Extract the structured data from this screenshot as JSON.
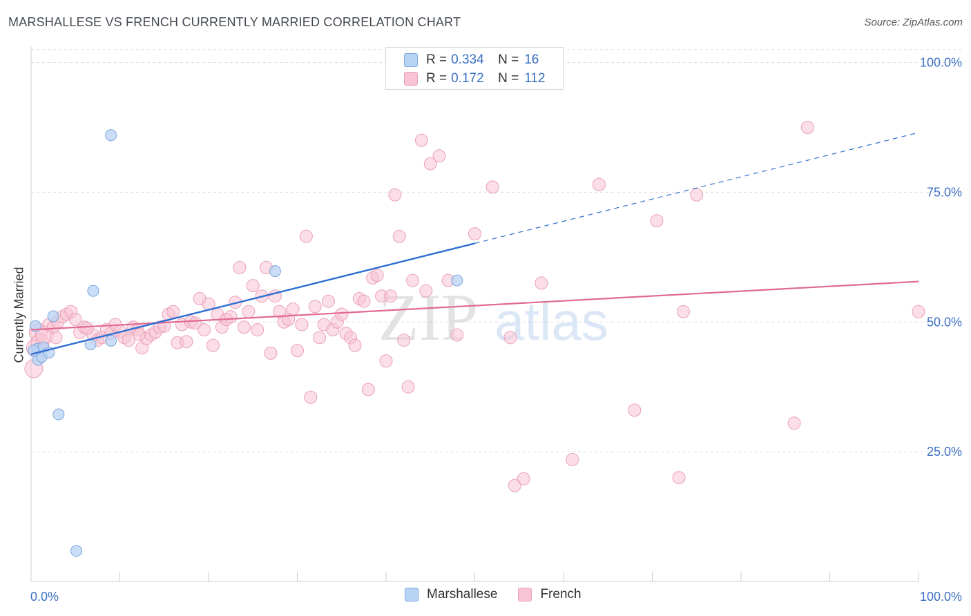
{
  "header": {
    "title": "MARSHALLESE VS FRENCH CURRENTLY MARRIED CORRELATION CHART",
    "source": "Source: ZipAtlas.com"
  },
  "watermark": {
    "zip": "ZIP",
    "atlas": "atlas"
  },
  "legend_top": {
    "rows": [
      {
        "series": "Marshallese",
        "r_label": "R =",
        "r_value": "0.334",
        "n_label": "N =",
        "n_value": "16"
      },
      {
        "series": "French",
        "r_label": "R =",
        "r_value": "0.172",
        "n_label": "N =",
        "n_value": "112"
      }
    ]
  },
  "legend_bottom": {
    "items": [
      {
        "label": "Marshallese"
      },
      {
        "label": "French"
      }
    ]
  },
  "colors": {
    "marshallese_fill": "#b9d3f4",
    "marshallese_stroke": "#7ea6dc",
    "marshallese_line": "#2f6fcf",
    "french_fill": "#f8c3d4",
    "french_stroke": "#eaa0b8",
    "french_line": "#e0698f",
    "axis_label": "#3b6fc4",
    "grid": "#dddddd"
  },
  "chart_data": {
    "type": "scatter",
    "title": "MARSHALLESE VS FRENCH CURRENTLY MARRIED CORRELATION CHART",
    "xlabel": "",
    "ylabel": "Currently Married",
    "xlim": [
      0,
      100
    ],
    "ylim": [
      0,
      103
    ],
    "x_tick_labels": [
      {
        "value": 0,
        "label": "0.0%"
      },
      {
        "value": 100,
        "label": "100.0%"
      }
    ],
    "y_tick_labels": [
      {
        "value": 25,
        "label": "25.0%"
      },
      {
        "value": 50,
        "label": "50.0%"
      },
      {
        "value": 75,
        "label": "75.0%"
      },
      {
        "value": 100,
        "label": "100.0%"
      }
    ],
    "series": [
      {
        "name": "Marshallese",
        "points": [
          [
            0.5,
            49.2
          ],
          [
            0.7,
            44.8
          ],
          [
            0.8,
            42.7
          ],
          [
            1.2,
            43.3
          ],
          [
            1.4,
            45.1
          ],
          [
            2.0,
            44.1
          ],
          [
            2.5,
            51.1
          ],
          [
            3.1,
            32.2
          ],
          [
            5.1,
            5.9
          ],
          [
            7.0,
            56.0
          ],
          [
            6.7,
            45.7
          ],
          [
            9.0,
            86.0
          ],
          [
            9.0,
            46.4
          ],
          [
            27.5,
            59.8
          ],
          [
            48.0,
            58.0
          ],
          [
            0.3,
            44.5
          ]
        ],
        "trend": {
          "x0": 0,
          "y0": 43.8,
          "x1": 100,
          "y1": 86.5,
          "solid_until": 50
        }
      },
      {
        "name": "French",
        "points": [
          [
            0.3,
            41.0
          ],
          [
            0.5,
            45.0
          ],
          [
            0.8,
            48.0
          ],
          [
            1.0,
            46.0
          ],
          [
            1.5,
            47.5
          ],
          [
            2.0,
            49.5
          ],
          [
            2.5,
            49.0
          ],
          [
            3.0,
            50.0
          ],
          [
            3.5,
            51.0
          ],
          [
            4.0,
            51.5
          ],
          [
            4.5,
            52.0
          ],
          [
            5.0,
            50.5
          ],
          [
            5.5,
            48.0
          ],
          [
            6.0,
            49.0
          ],
          [
            7.0,
            47.5
          ],
          [
            7.5,
            46.5
          ],
          [
            8.0,
            47.0
          ],
          [
            8.5,
            48.5
          ],
          [
            9.0,
            47.8
          ],
          [
            9.5,
            49.5
          ],
          [
            10.0,
            48.2
          ],
          [
            10.5,
            47.0
          ],
          [
            11.0,
            46.5
          ],
          [
            11.5,
            49.0
          ],
          [
            12.0,
            48.5
          ],
          [
            12.5,
            45.0
          ],
          [
            13.0,
            46.8
          ],
          [
            13.5,
            47.5
          ],
          [
            14.0,
            48.0
          ],
          [
            14.5,
            49.0
          ],
          [
            15.0,
            49.2
          ],
          [
            15.5,
            51.5
          ],
          [
            16.0,
            52.0
          ],
          [
            16.5,
            46.0
          ],
          [
            17.0,
            49.5
          ],
          [
            17.5,
            46.2
          ],
          [
            18.0,
            50.0
          ],
          [
            18.5,
            49.8
          ],
          [
            19.0,
            54.5
          ],
          [
            19.5,
            48.5
          ],
          [
            20.0,
            53.5
          ],
          [
            20.5,
            45.5
          ],
          [
            21.0,
            51.5
          ],
          [
            21.5,
            49.0
          ],
          [
            22.0,
            50.5
          ],
          [
            22.5,
            51.0
          ],
          [
            23.0,
            53.8
          ],
          [
            23.5,
            60.5
          ],
          [
            24.0,
            49.0
          ],
          [
            24.5,
            52.0
          ],
          [
            25.0,
            57.0
          ],
          [
            25.5,
            48.5
          ],
          [
            26.0,
            55.0
          ],
          [
            26.5,
            60.5
          ],
          [
            27.0,
            44.0
          ],
          [
            27.5,
            55.0
          ],
          [
            28.0,
            52.0
          ],
          [
            28.5,
            50.0
          ],
          [
            29.0,
            50.5
          ],
          [
            29.5,
            52.5
          ],
          [
            30.0,
            44.5
          ],
          [
            30.5,
            49.5
          ],
          [
            31.0,
            66.5
          ],
          [
            31.5,
            35.5
          ],
          [
            32.0,
            53.0
          ],
          [
            32.5,
            47.0
          ],
          [
            33.0,
            49.5
          ],
          [
            33.5,
            54.0
          ],
          [
            34.0,
            48.5
          ],
          [
            34.5,
            50.0
          ],
          [
            35.0,
            51.5
          ],
          [
            35.5,
            47.8
          ],
          [
            36.0,
            47.0
          ],
          [
            36.5,
            45.5
          ],
          [
            37.0,
            54.5
          ],
          [
            37.5,
            54.0
          ],
          [
            38.0,
            37.0
          ],
          [
            38.5,
            58.5
          ],
          [
            39.0,
            59.0
          ],
          [
            39.5,
            55.0
          ],
          [
            40.0,
            42.5
          ],
          [
            40.5,
            55.0
          ],
          [
            41.0,
            74.5
          ],
          [
            41.5,
            66.5
          ],
          [
            42.0,
            46.5
          ],
          [
            42.5,
            37.5
          ],
          [
            43.0,
            58.0
          ],
          [
            44.0,
            85.0
          ],
          [
            44.5,
            56.0
          ],
          [
            45.0,
            80.5
          ],
          [
            46.0,
            82.0
          ],
          [
            47.0,
            58.0
          ],
          [
            48.0,
            47.5
          ],
          [
            50.0,
            67.0
          ],
          [
            52.0,
            76.0
          ],
          [
            54.0,
            47.0
          ],
          [
            54.5,
            18.5
          ],
          [
            55.5,
            19.8
          ],
          [
            57.5,
            57.5
          ],
          [
            61.0,
            23.5
          ],
          [
            64.0,
            76.5
          ],
          [
            68.0,
            33.0
          ],
          [
            70.5,
            69.5
          ],
          [
            73.0,
            20.0
          ],
          [
            73.5,
            52.0
          ],
          [
            75.0,
            74.5
          ],
          [
            86.0,
            30.5
          ],
          [
            87.5,
            87.5
          ],
          [
            100.0,
            52.0
          ],
          [
            2.8,
            47.0
          ],
          [
            6.3,
            48.8
          ],
          [
            12.2,
            47.6
          ]
        ],
        "trend": {
          "x0": 0,
          "y0": 48.5,
          "x1": 100,
          "y1": 57.8
        }
      }
    ]
  }
}
